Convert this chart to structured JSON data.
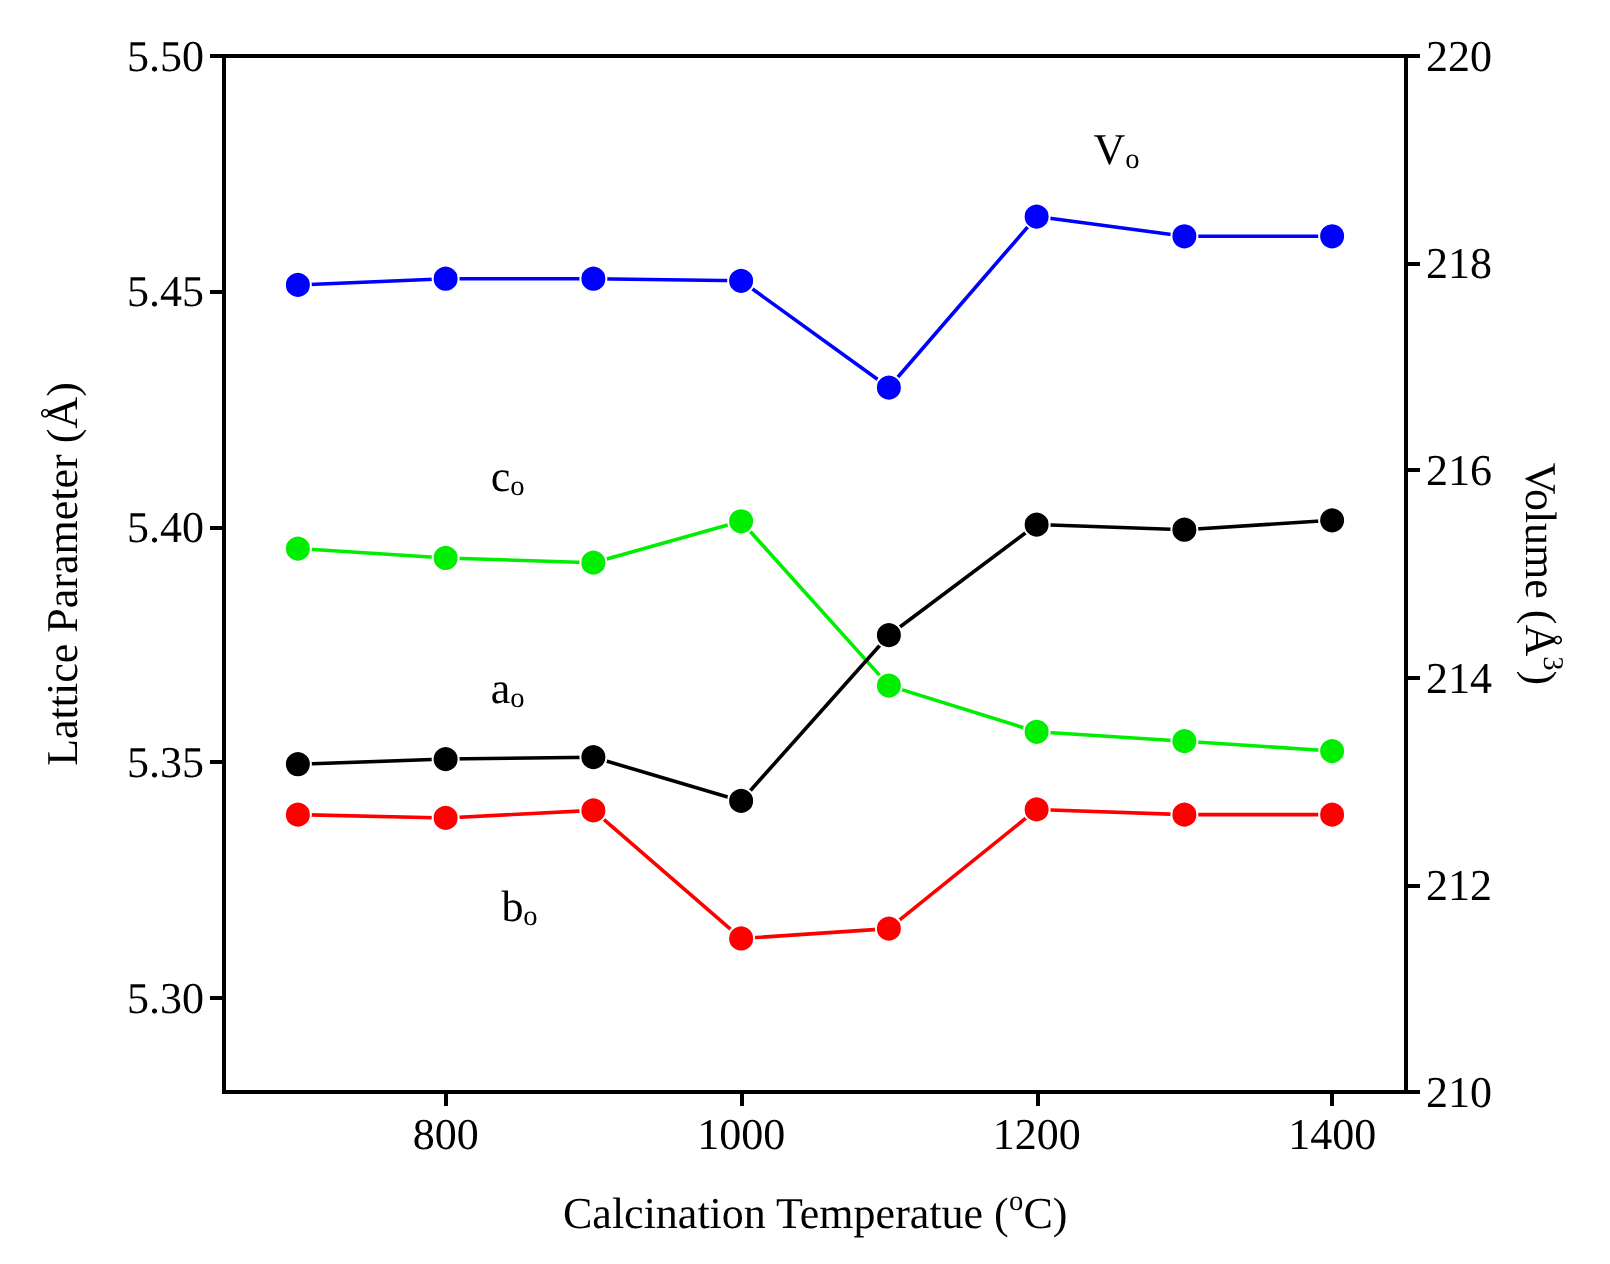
{
  "chart_data": {
    "type": "line",
    "xlabel": "Calcination Temperatue ($^{o}$C)",
    "ylabel": "Lattice Parameter (Å)",
    "y2label": "Volume (Å$^{3}$)",
    "x": [
      700,
      800,
      900,
      1000,
      1100,
      1200,
      1300,
      1400
    ],
    "series": [
      {
        "name": "V$_{o}$",
        "color": "#0000ff",
        "axis": "y2",
        "values": [
          217.79,
          217.85,
          217.85,
          217.83,
          216.8,
          218.45,
          218.26,
          218.26
        ]
      },
      {
        "name": "c$_{o}$",
        "color": "#00ee00",
        "values": [
          5.3954,
          5.3934,
          5.3924,
          5.4012,
          5.3663,
          5.3565,
          5.3545,
          5.3524
        ]
      },
      {
        "name": "a$_{o}$",
        "color": "#000000",
        "values": [
          5.3496,
          5.3507,
          5.3511,
          5.3418,
          5.377,
          5.4005,
          5.3994,
          5.4014
        ]
      },
      {
        "name": "b$_{o}$",
        "color": "#ff0000",
        "values": [
          5.3389,
          5.3382,
          5.3398,
          5.3126,
          5.3147,
          5.34,
          5.3389,
          5.3389
        ]
      }
    ],
    "xlim": [
      650,
      1450
    ],
    "xticks": [
      800,
      1000,
      1200,
      1400
    ],
    "ylim": [
      5.28,
      5.5
    ],
    "yticks": [
      {
        "value": 5.3,
        "label": "5.30"
      },
      {
        "value": 5.35,
        "label": "5.35"
      },
      {
        "value": 5.4,
        "label": "5.40"
      },
      {
        "value": 5.45,
        "label": "5.45"
      },
      {
        "value": 5.5,
        "label": "5.50"
      }
    ],
    "y2lim": [
      210,
      220
    ],
    "y2ticks": [
      210,
      212,
      214,
      216,
      218,
      220
    ],
    "grid": false,
    "marker": "circle",
    "line_style": "solid"
  }
}
